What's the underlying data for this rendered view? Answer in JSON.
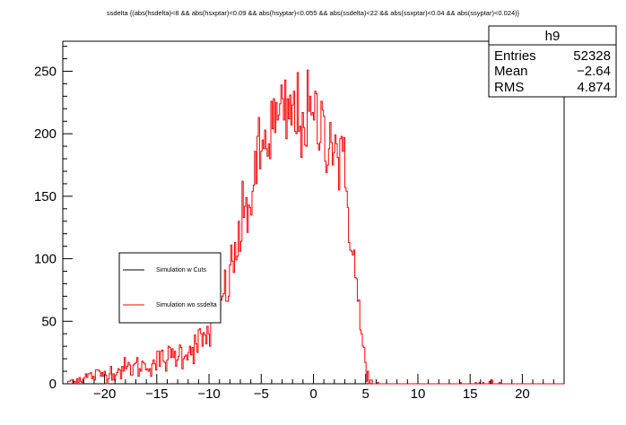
{
  "chart_data": {
    "type": "line",
    "title": "ssdelta {(abs(hsdelta)<8 && abs(hsxptar)<0.09 && abs(hsyptar)<0.055 && abs(ssdelta)<22 && abs(ssxptar)<0.04 && abs(ssyptar)<0.024)}",
    "xlim": [
      -24,
      24
    ],
    "ylim": [
      0,
      274
    ],
    "x_ticks": [
      -20,
      -15,
      -10,
      -5,
      0,
      5,
      10,
      15,
      20
    ],
    "y_ticks": [
      0,
      50,
      100,
      150,
      200,
      250
    ],
    "bin_width": 0.12,
    "legend": {
      "placement": "left-middle",
      "entries": [
        {
          "label": "Simulation w Cuts",
          "color": "#000000"
        },
        {
          "label": "Simulation wo ssdelta",
          "color": "#ff0000"
        }
      ]
    },
    "stats": {
      "name": "h9",
      "entries_label": "Entries",
      "entries": "52328",
      "mean_label": "Mean",
      "mean": "−2.64",
      "rms_label": "RMS",
      "rms": "4.874"
    },
    "series": [
      {
        "label": "Simulation wo ssdelta",
        "color": "#ff0000",
        "envelope_x": [
          -24,
          -22,
          -20,
          -18,
          -16,
          -14,
          -12,
          -11,
          -10,
          -9,
          -8,
          -7,
          -6,
          -5,
          -4,
          -3,
          -2,
          -1,
          0,
          1,
          2,
          3,
          3.5,
          4,
          4.5,
          5,
          5.3,
          5.6,
          6,
          24
        ],
        "envelope_y": [
          0,
          5,
          8,
          12,
          15,
          20,
          27,
          32,
          40,
          60,
          85,
          120,
          150,
          185,
          205,
          212,
          215,
          212,
          210,
          205,
          195,
          165,
          130,
          90,
          45,
          15,
          4,
          1,
          0.5,
          0
        ]
      }
    ]
  }
}
